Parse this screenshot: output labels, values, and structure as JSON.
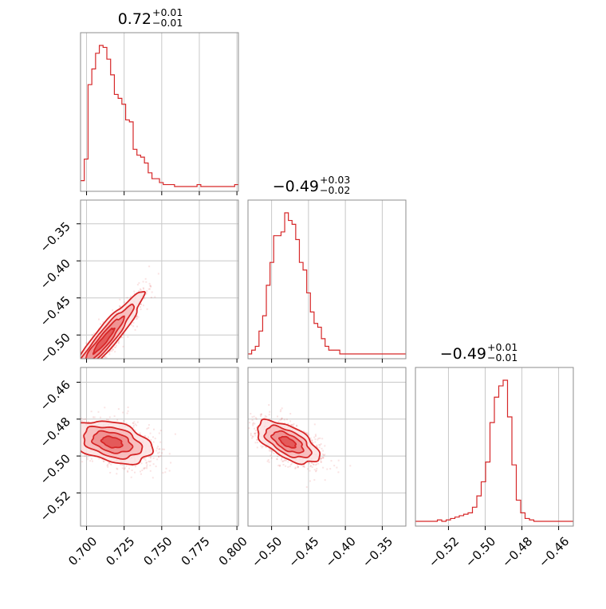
{
  "chart_data": {
    "type": "corner",
    "color": "#d62728",
    "grid": true,
    "parameters": [
      {
        "median": "0.72",
        "plus": "+0.01",
        "minus": "−0.01",
        "range": [
          0.696,
          0.801
        ],
        "ticks": [
          0.7,
          0.725,
          0.75,
          0.775,
          0.8
        ],
        "tick_labels": [
          "0.700",
          "0.725",
          "0.750",
          "0.775",
          "0.800"
        ]
      },
      {
        "median": "−0.49",
        "plus": "+0.03",
        "minus": "−0.02",
        "range": [
          -0.532,
          -0.318
        ],
        "ticks": [
          -0.5,
          -0.45,
          -0.4,
          -0.35
        ],
        "tick_labels": [
          "−0.50",
          "−0.45",
          "−0.40",
          "−0.35"
        ]
      },
      {
        "median": "−0.49",
        "plus": "+0.01",
        "minus": "−0.01",
        "range": [
          -0.538,
          -0.452
        ],
        "ticks": [
          -0.52,
          -0.5,
          -0.48,
          -0.46
        ],
        "tick_labels": [
          "−0.52",
          "−0.50",
          "−0.48",
          "−0.46"
        ]
      }
    ],
    "histograms": [
      {
        "param": 0,
        "range": [
          0.696,
          0.801
        ],
        "counts": [
          3,
          14,
          52,
          60,
          68,
          72,
          71,
          65,
          57,
          47,
          45,
          42,
          34,
          33,
          19,
          16,
          15,
          12,
          7,
          4,
          4,
          2,
          1,
          1,
          1,
          0,
          0,
          0,
          0,
          0,
          0,
          1,
          0,
          0,
          0,
          0,
          0,
          0,
          0,
          0,
          0,
          1
        ]
      },
      {
        "param": 1,
        "range": [
          -0.532,
          -0.318
        ],
        "counts": [
          0,
          1,
          2,
          6,
          10,
          18,
          24,
          31,
          31,
          32,
          37,
          35,
          34,
          30,
          24,
          22,
          16,
          11,
          8,
          7,
          4,
          2,
          1,
          1,
          1,
          0,
          0,
          0,
          0,
          0,
          0,
          0,
          0,
          0,
          0,
          0,
          0,
          0,
          0,
          0,
          0,
          0,
          0
        ]
      },
      {
        "param": 2,
        "range": [
          -0.538,
          -0.452
        ],
        "counts": [
          0,
          0,
          0,
          0,
          0,
          1,
          0,
          1,
          2,
          3,
          4,
          5,
          6,
          10,
          18,
          28,
          42,
          70,
          88,
          96,
          100,
          74,
          40,
          15,
          6,
          2,
          1,
          0,
          0,
          0,
          0,
          0,
          0,
          0,
          0,
          0
        ]
      }
    ],
    "scatter_panels": [
      {
        "x_param": 0,
        "y_param": 1,
        "center": [
          0.7115,
          -0.5075
        ],
        "spread": [
          0.0125,
          0.0305
        ],
        "correlation": 0.94
      },
      {
        "x_param": 0,
        "y_param": 2,
        "center": [
          0.717,
          -0.4925
        ],
        "spread": [
          0.0125,
          0.0055
        ],
        "correlation": -0.35
      },
      {
        "x_param": 1,
        "y_param": 2,
        "center": [
          -0.478,
          -0.4925
        ],
        "spread": [
          0.02,
          0.0055
        ],
        "correlation": -0.6
      }
    ]
  }
}
